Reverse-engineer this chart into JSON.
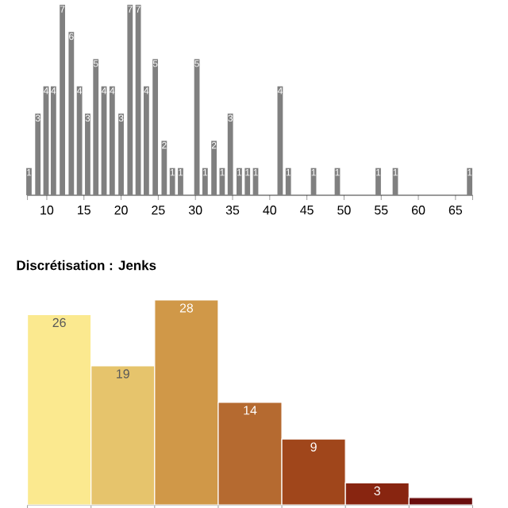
{
  "chart_data": [
    {
      "type": "bar",
      "x": [
        7.6,
        8.8,
        9.9,
        10.9,
        12.1,
        13.3,
        14.4,
        15.5,
        16.6,
        17.7,
        18.8,
        20.0,
        21.2,
        22.3,
        23.4,
        24.6,
        25.8,
        26.9,
        28.0,
        30.2,
        31.3,
        32.5,
        33.6,
        34.7,
        35.9,
        37.0,
        38.1,
        41.4,
        42.5,
        45.9,
        49.1,
        54.6,
        56.9,
        66.9
      ],
      "values": [
        1,
        3,
        4,
        4,
        7,
        6,
        4,
        3,
        5,
        4,
        4,
        3,
        7,
        7,
        4,
        5,
        2,
        1,
        1,
        5,
        1,
        2,
        1,
        3,
        1,
        1,
        1,
        4,
        1,
        1,
        1,
        1,
        1,
        1
      ],
      "color": "#808080",
      "data_labels": true,
      "xlim": [
        7.4,
        67.3
      ],
      "xticks": [
        10,
        15,
        20,
        25,
        30,
        35,
        40,
        45,
        50,
        55,
        60,
        65
      ]
    },
    {
      "type": "bar",
      "title": "Discrétisation : Jenks",
      "categories": [
        null,
        null,
        null,
        null,
        null,
        null,
        null
      ],
      "values": [
        26,
        19,
        28,
        14,
        9,
        3,
        1
      ],
      "value_labels": [
        "26",
        "19",
        "28",
        "14",
        "9",
        "3",
        null
      ],
      "colors": [
        "#fbe98f",
        "#e6c46c",
        "#d09848",
        "#b56a30",
        "#a0461b",
        "#882510",
        "#6a0d0d"
      ],
      "tick_labels": false
    }
  ]
}
